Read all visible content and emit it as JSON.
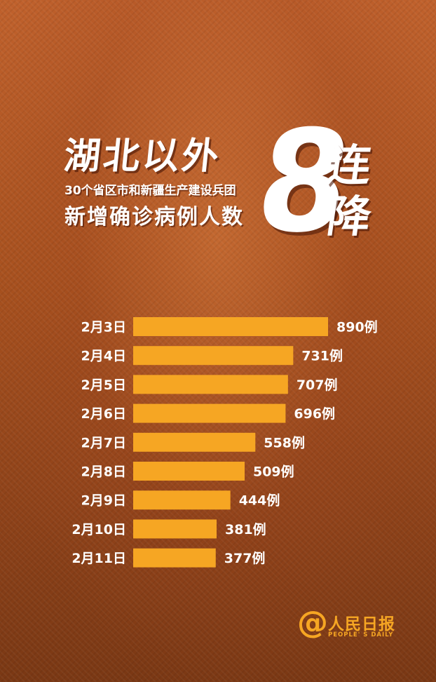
{
  "header": {
    "title": "湖北以外",
    "subtitle_line1": "30个省区市和新疆生产建设兵团",
    "subtitle_line2": "新增确诊病例人数",
    "big_number": "8",
    "side_text_1": "连",
    "side_text_2": "降"
  },
  "chart_data": {
    "type": "bar",
    "orientation": "horizontal",
    "categories": [
      "2月3日",
      "2月4日",
      "2月5日",
      "2月6日",
      "2月7日",
      "2月8日",
      "2月9日",
      "2月10日",
      "2月11日"
    ],
    "values": [
      890,
      731,
      707,
      696,
      558,
      509,
      444,
      381,
      377
    ],
    "value_labels": [
      "890例",
      "731例",
      "707例",
      "696例",
      "558例",
      "509例",
      "444例",
      "381例",
      "377例"
    ],
    "bar_color": "#f6a623",
    "grid": false
  },
  "logo": {
    "symbol": "@",
    "name_cn": "人民日报",
    "name_en": "PEOPLE' S DAILY",
    "color": "#f6a623"
  }
}
